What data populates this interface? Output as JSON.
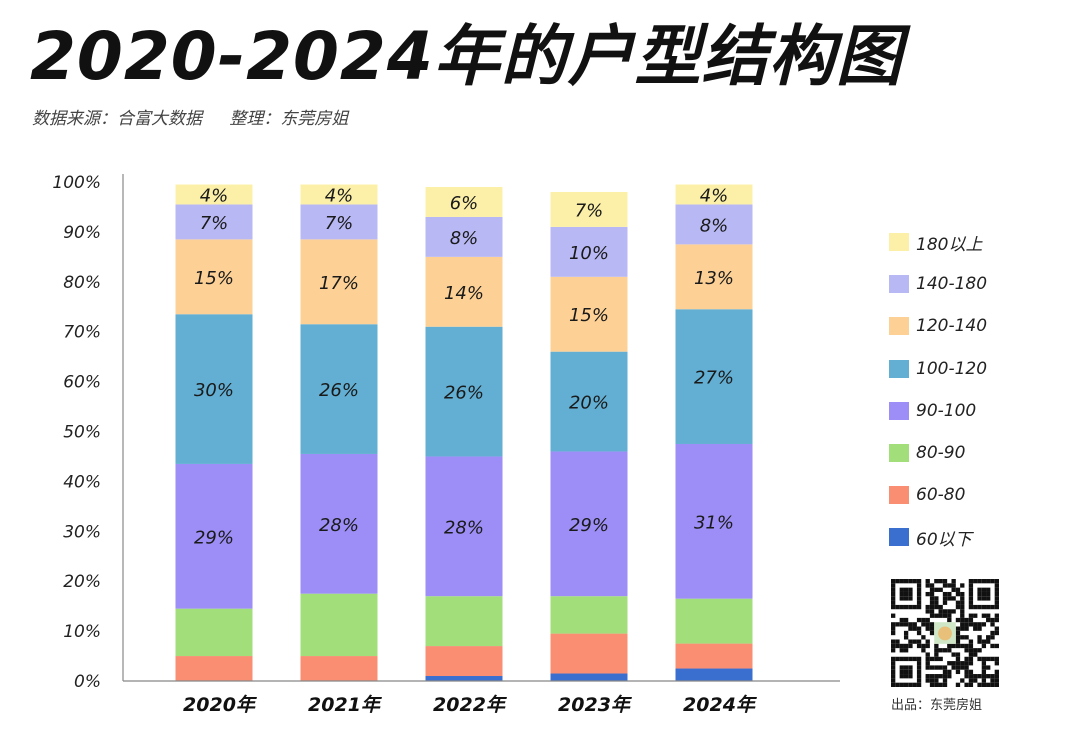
{
  "header": {
    "title": "2020-2024年的户型结构图",
    "source": "数据来源：合富大数据",
    "organizer": "整理：东莞房姐"
  },
  "footer": {
    "credit": "出品：东莞房姐"
  },
  "chart_data": {
    "type": "bar",
    "stacked": true,
    "categories": [
      "2020年",
      "2021年",
      "2022年",
      "2023年",
      "2024年"
    ],
    "y_ticks": [
      "0%",
      "10%",
      "20%",
      "30%",
      "40%",
      "50%",
      "60%",
      "70%",
      "80%",
      "90%",
      "100%"
    ],
    "ylim": [
      0,
      100
    ],
    "legend_position": "right",
    "grid": false,
    "series": [
      {
        "name": "60以下",
        "color": "#3a6fd0",
        "values": [
          0,
          0,
          1,
          1.5,
          2.5
        ],
        "labels": [
          "",
          "",
          "",
          "",
          ""
        ]
      },
      {
        "name": "60-80",
        "color": "#f98e73",
        "values": [
          5,
          5,
          6,
          8,
          5
        ],
        "labels": [
          "",
          "",
          "",
          "",
          ""
        ]
      },
      {
        "name": "80-90",
        "color": "#a2df7b",
        "values": [
          9.5,
          12.5,
          10,
          7.5,
          9
        ],
        "labels": [
          "",
          "",
          "",
          "",
          ""
        ]
      },
      {
        "name": "90-100",
        "color": "#9c8ef6",
        "values": [
          29,
          28,
          28,
          29,
          31
        ],
        "labels": [
          "29%",
          "28%",
          "28%",
          "29%",
          "31%"
        ]
      },
      {
        "name": "100-120",
        "color": "#62afd3",
        "values": [
          30,
          26,
          26,
          20,
          27
        ],
        "labels": [
          "30%",
          "26%",
          "26%",
          "20%",
          "27%"
        ]
      },
      {
        "name": "120-140",
        "color": "#fdd196",
        "values": [
          15,
          17,
          14,
          15,
          13
        ],
        "labels": [
          "15%",
          "17%",
          "14%",
          "15%",
          "13%"
        ]
      },
      {
        "name": "140-180",
        "color": "#b8b8f5",
        "values": [
          7,
          7,
          8,
          10,
          8
        ],
        "labels": [
          "7%",
          "7%",
          "8%",
          "10%",
          "8%"
        ]
      },
      {
        "name": "180以上",
        "color": "#fcf0a8",
        "values": [
          4,
          4,
          6,
          7,
          4
        ],
        "labels": [
          "4%",
          "4%",
          "6%",
          "7%",
          "4%"
        ]
      }
    ]
  }
}
